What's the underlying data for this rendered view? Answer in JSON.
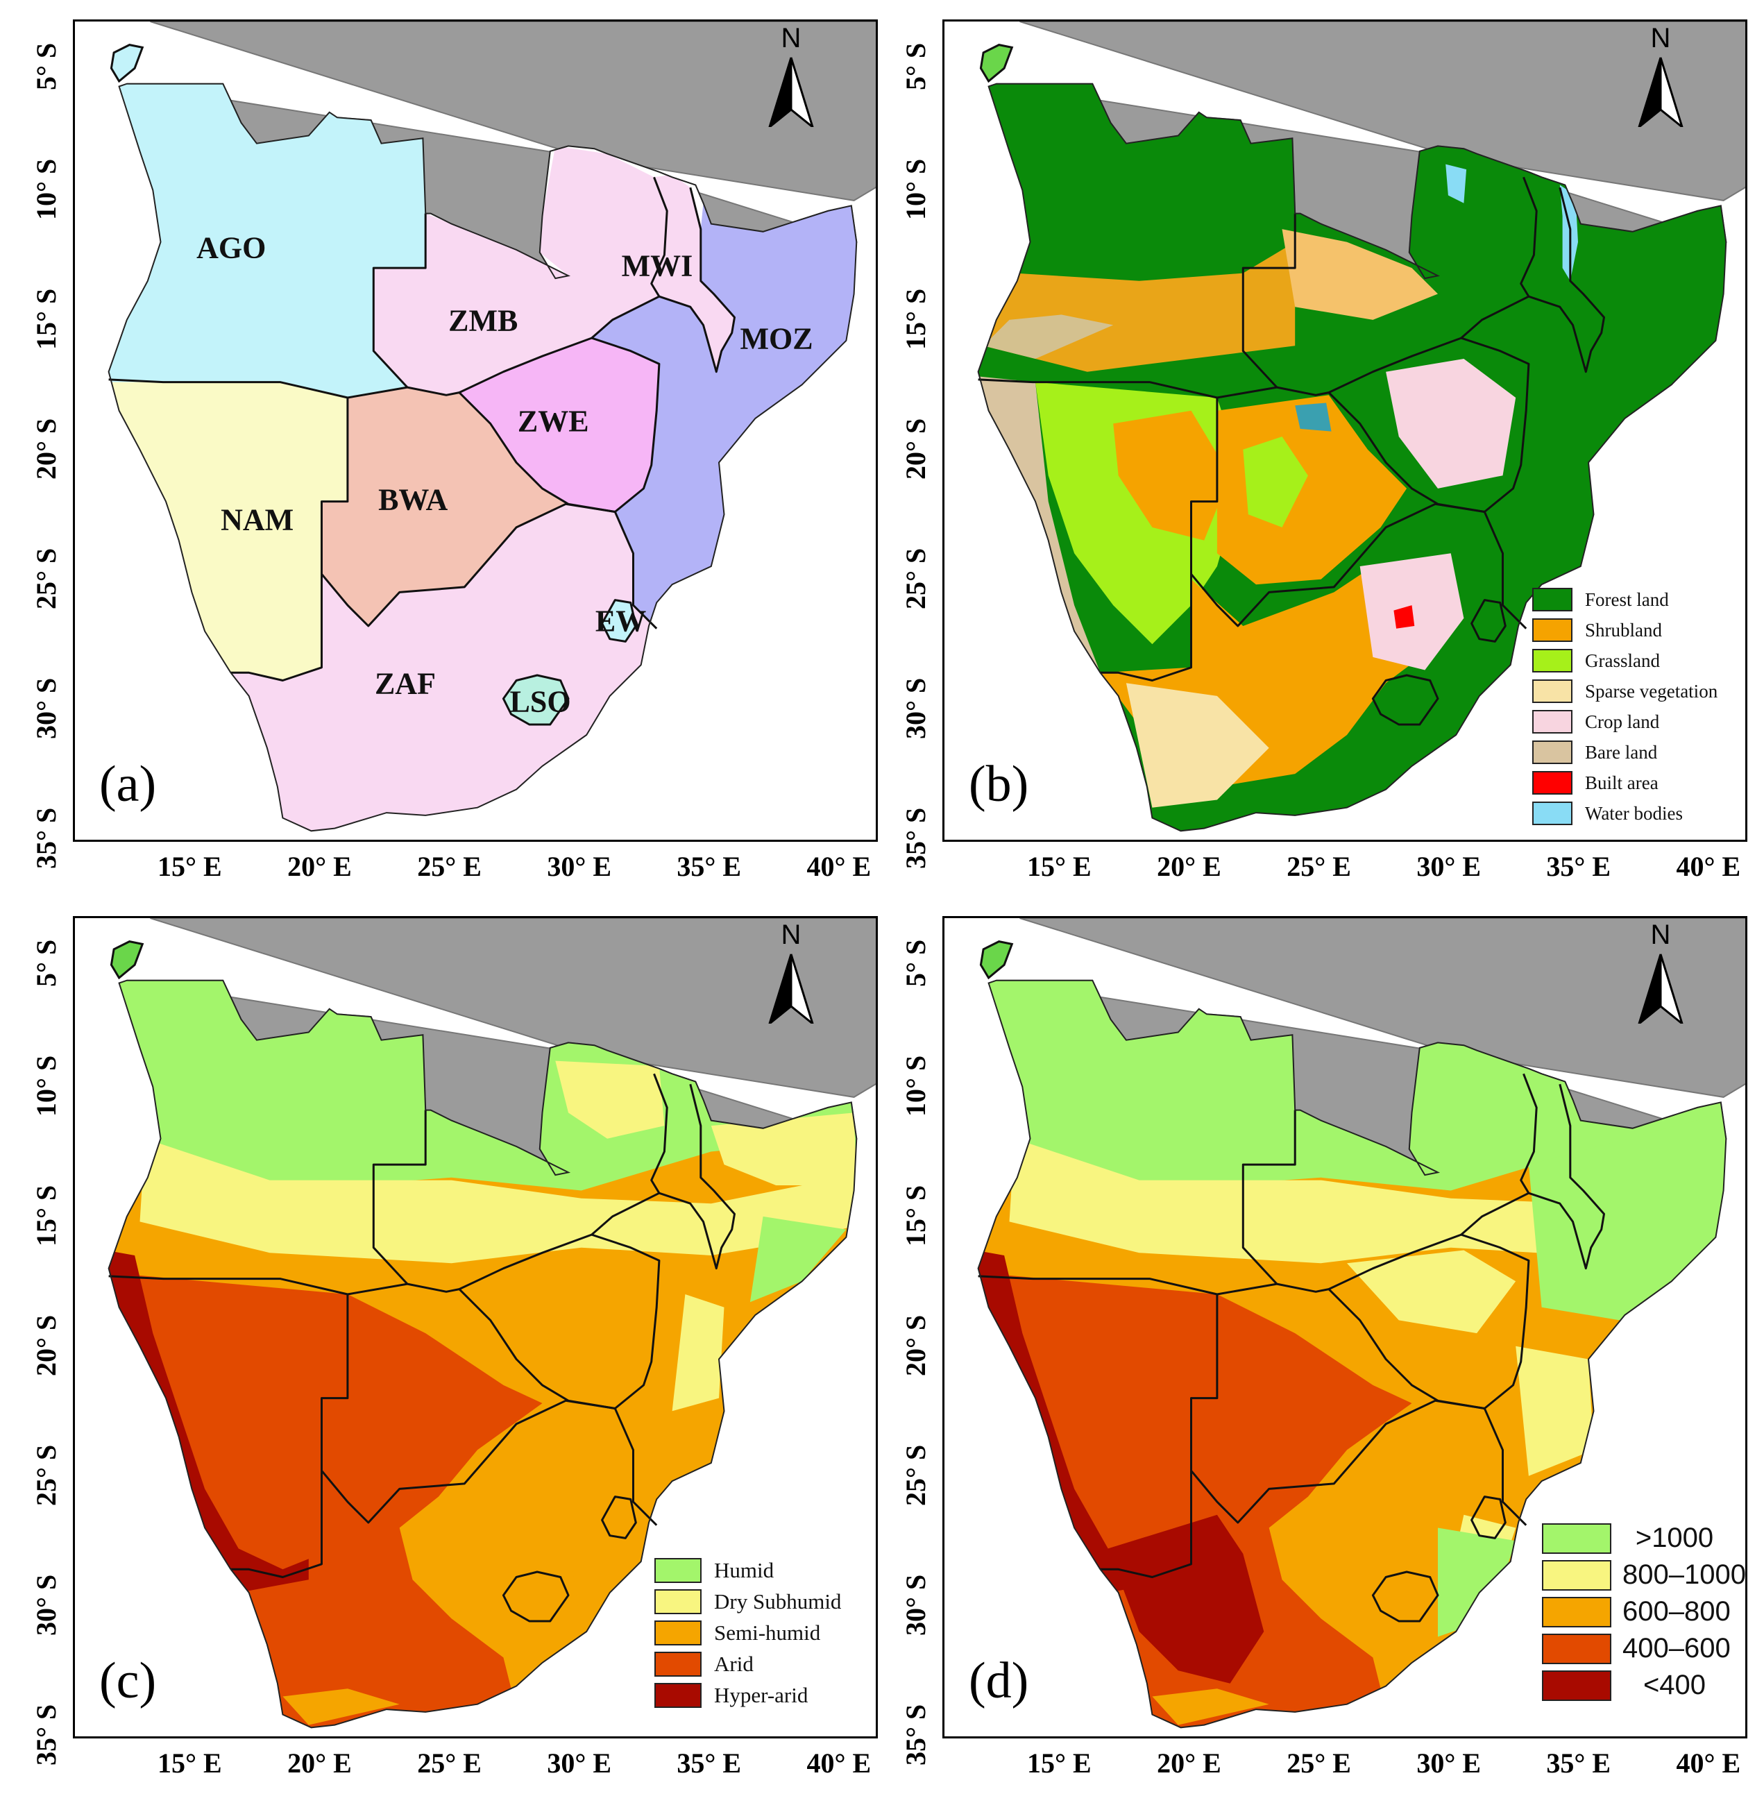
{
  "figure": {
    "panels": [
      {
        "id": "a",
        "label": "(a)",
        "theme": "countries",
        "north_label": "N",
        "x_ticks": [
          "15° E",
          "20° E",
          "25° E",
          "30° E",
          "35° E",
          "40° E"
        ],
        "y_ticks": [
          "5° S",
          "10° S",
          "15° S",
          "20° S",
          "25° S",
          "30° S",
          "35° S"
        ],
        "country_labels": [
          "AGO",
          "ZMB",
          "MWI",
          "MOZ",
          "ZWE",
          "NAM",
          "BWA",
          "ZAF",
          "LSO",
          "EW"
        ],
        "legend": []
      },
      {
        "id": "b",
        "label": "(b)",
        "theme": "landcover",
        "north_label": "N",
        "x_ticks": [
          "15° E",
          "20° E",
          "25° E",
          "30° E",
          "35° E",
          "40° E"
        ],
        "y_ticks": [
          "5° S",
          "10° S",
          "15° S",
          "20° S",
          "25° S",
          "30° S",
          "35° S"
        ],
        "country_labels": [],
        "legend": [
          {
            "label": "Forest land",
            "color": "#0a8a0a"
          },
          {
            "label": "Shrubland",
            "color": "#f5a300"
          },
          {
            "label": "Grassland",
            "color": "#a6f01a"
          },
          {
            "label": "Sparse vegetation",
            "color": "#f8e3a6"
          },
          {
            "label": "Crop land",
            "color": "#f8d5e0"
          },
          {
            "label": "Bare land",
            "color": "#d9c4a0"
          },
          {
            "label": "Built area",
            "color": "#ff0000"
          },
          {
            "label": "Water bodies",
            "color": "#89dcf5"
          }
        ]
      },
      {
        "id": "c",
        "label": "(c)",
        "theme": "aridity",
        "north_label": "N",
        "x_ticks": [
          "15° E",
          "20° E",
          "25° E",
          "30° E",
          "35° E",
          "40° E"
        ],
        "y_ticks": [
          "5° S",
          "10° S",
          "15° S",
          "20° S",
          "25° S",
          "30° S",
          "35° S"
        ],
        "country_labels": [],
        "legend": [
          {
            "label": "Humid",
            "color": "#a3f56b"
          },
          {
            "label": "Dry Subhumid",
            "color": "#f8f580"
          },
          {
            "label": "Semi-humid",
            "color": "#f5a500"
          },
          {
            "label": "Arid",
            "color": "#e24a00"
          },
          {
            "label": "Hyper-arid",
            "color": "#a80a00"
          }
        ]
      },
      {
        "id": "d",
        "label": "(d)",
        "theme": "precipitation",
        "north_label": "N",
        "x_ticks": [
          "15° E",
          "20° E",
          "25° E",
          "30° E",
          "35° E",
          "40° E"
        ],
        "y_ticks": [
          "5° S",
          "10° S",
          "15° S",
          "20° S",
          "25° S",
          "30° S",
          "35° S"
        ],
        "country_labels": [],
        "legend": [
          {
            "label": ">1000",
            "color": "#a3f56b"
          },
          {
            "label": "800–1000",
            "color": "#f8f580"
          },
          {
            "label": "600–800",
            "color": "#f5a500"
          },
          {
            "label": "400–600",
            "color": "#e24a00"
          },
          {
            "label": "<400",
            "color": "#a80a00"
          }
        ]
      }
    ],
    "colors": {
      "ocean": "#ffffff",
      "outside_land": "#9b9b9b",
      "border": "#111111",
      "AGO": "#c3f3fa",
      "ZMB": "#f9d9f2",
      "MWI": "#f9d9f2",
      "MOZ": "#b3b3f7",
      "ZWE": "#f6b6f6",
      "NAM": "#fafac6",
      "BWA": "#f4c3b4",
      "ZAF": "#f9d9f2",
      "LSO": "#b8f0e0",
      "EW": "#c3f3fa"
    }
  }
}
